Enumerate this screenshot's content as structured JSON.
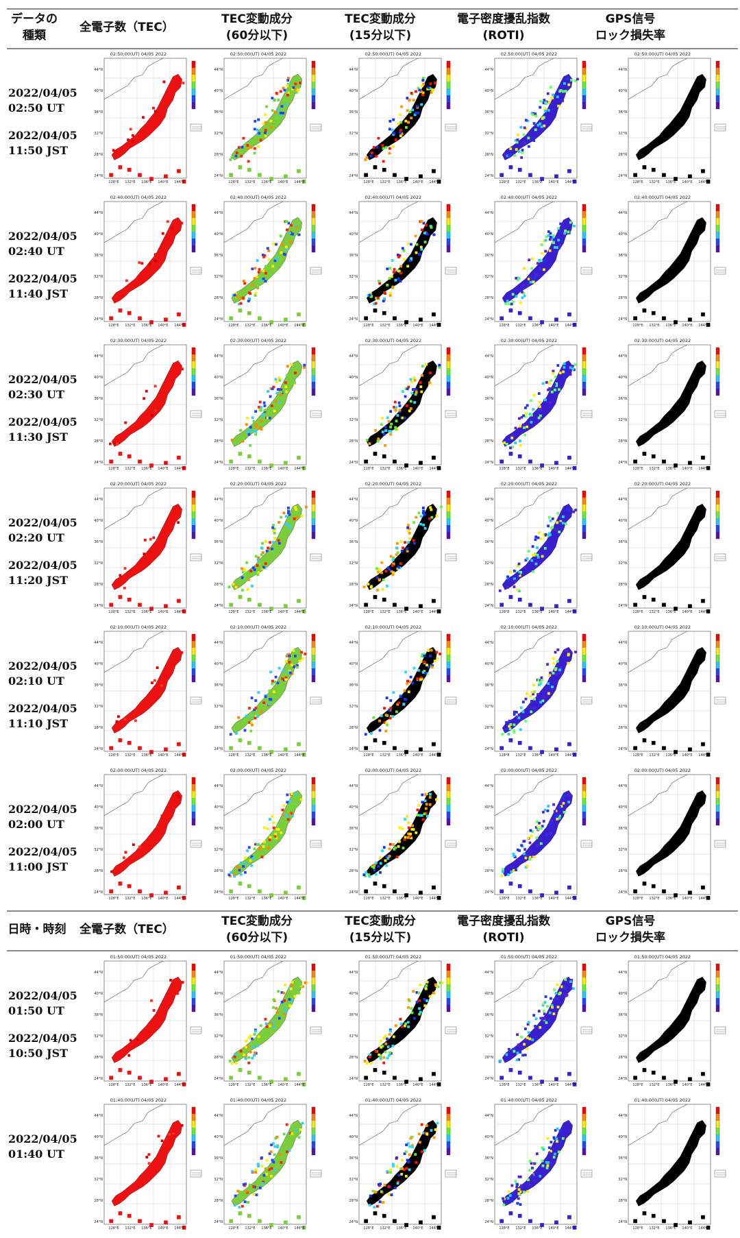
{
  "header_top": {
    "c0_l1": "データの",
    "c0_l2": "種類",
    "c1": "全電子数（TEC）",
    "c2_l1": "TEC変動成分",
    "c2_l2": "(60分以下)",
    "c3_l1": "TEC変動成分",
    "c3_l2": "(15分以下)",
    "c4_l1": "電子密度擾乱指数",
    "c4_l2": "(ROTI)",
    "c5_l1": "GPS信号",
    "c5_l2": "ロック損失率"
  },
  "header_mid": {
    "c0": "日時・時刻",
    "c1": "全電子数（TEC）",
    "c2_l1": "TEC変動成分",
    "c2_l2": "(60分以下)",
    "c3_l1": "TEC変動成分",
    "c3_l2": "(15分以下)",
    "c4_l1": "電子密度擾乱指数",
    "c4_l2": "(ROTI)",
    "c5_l1": "GPS信号",
    "c5_l2": "ロック損失率"
  },
  "rows": [
    {
      "date_ut": "2022/04/05",
      "time_ut": "02:50 UT",
      "date_jst": "2022/04/05",
      "time_jst": "11:50 JST",
      "map_title": "02:50:00(UT) 04/05 2022"
    },
    {
      "date_ut": "2022/04/05",
      "time_ut": "02:40 UT",
      "date_jst": "2022/04/05",
      "time_jst": "11:40 JST",
      "map_title": "02:40:00(UT) 04/05 2022"
    },
    {
      "date_ut": "2022/04/05",
      "time_ut": "02:30 UT",
      "date_jst": "2022/04/05",
      "time_jst": "11:30 JST",
      "map_title": "02:30:00(UT) 04/05 2022"
    },
    {
      "date_ut": "2022/04/05",
      "time_ut": "02:20 UT",
      "date_jst": "2022/04/05",
      "time_jst": "11:20 JST",
      "map_title": "02:20:00(UT) 04/05 2022"
    },
    {
      "date_ut": "2022/04/05",
      "time_ut": "02:10 UT",
      "date_jst": "2022/04/05",
      "time_jst": "11:10 JST",
      "map_title": "02:10:00(UT) 04/05 2022"
    },
    {
      "date_ut": "2022/04/05",
      "time_ut": "02:00 UT",
      "date_jst": "2022/04/05",
      "time_jst": "11:00 JST",
      "map_title": "02:00:00(UT) 04/05 2022"
    },
    {
      "date_ut": "2022/04/05",
      "time_ut": "01:50 UT",
      "date_jst": "2022/04/05",
      "time_jst": "10:50 JST",
      "map_title": "01:50:00(UT) 04/05 2022"
    },
    {
      "date_ut": "2022/04/05",
      "time_ut": "01:40 UT",
      "date_jst": "",
      "time_jst": "",
      "map_title": "01:40:00(UT) 04/05 2022"
    }
  ],
  "map_axes": {
    "lat": [
      "44°N",
      "40°N",
      "36°N",
      "32°N",
      "28°N",
      "24°N"
    ],
    "lon": [
      "128°E",
      "132°E",
      "136°E",
      "140°E",
      "144°E"
    ]
  },
  "colors": {
    "tec": "#ee1111",
    "tec60_base": "#7ccd3c",
    "tec15_base": "#000000",
    "roti_base": "#3a1fd0",
    "lol_base": "#000000"
  }
}
